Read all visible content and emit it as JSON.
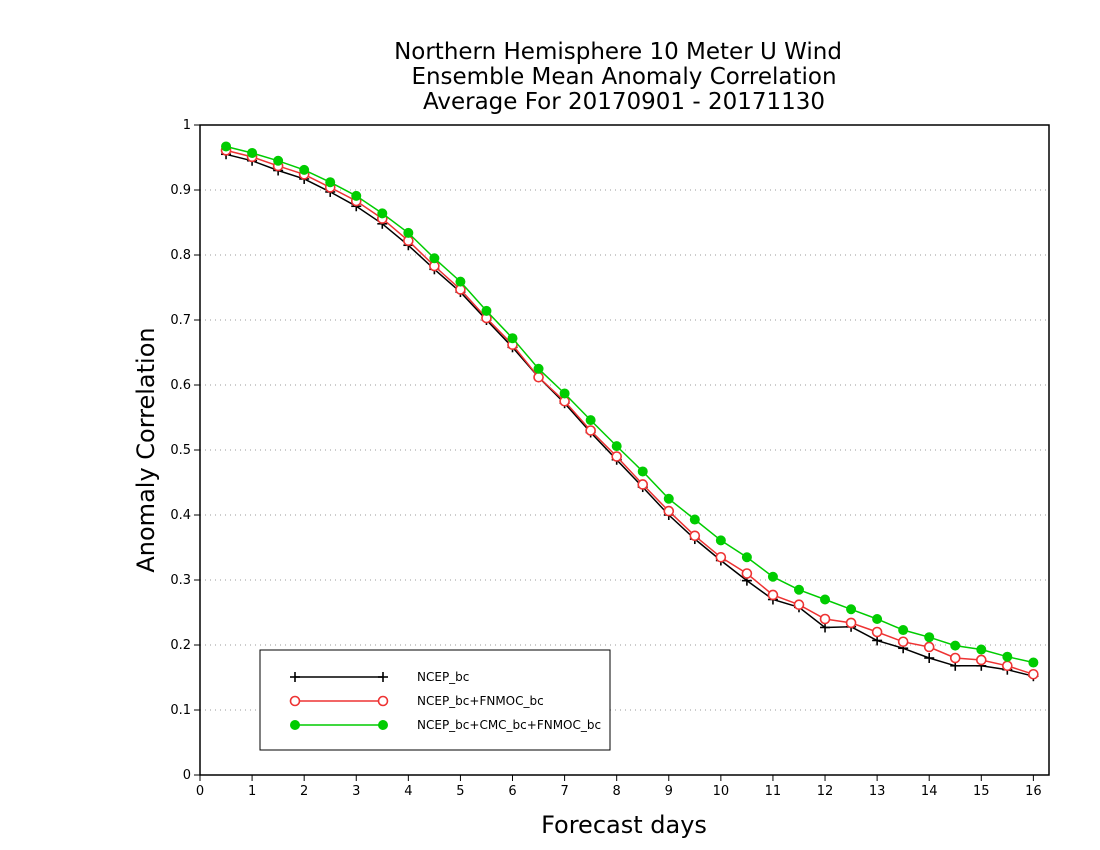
{
  "chart_data": {
    "type": "line",
    "title": [
      "Northern Hemisphere 10 Meter U Wind",
      "Ensemble Mean Anomaly Correlation",
      "Average For 20170901 - 20171130"
    ],
    "xlabel": "Forecast days",
    "ylabel": "Anomaly Correlation",
    "xlim": [
      0,
      16.3
    ],
    "ylim": [
      0,
      1
    ],
    "xticks": [
      "0",
      "1",
      "2",
      "3",
      "4",
      "5",
      "6",
      "7",
      "8",
      "9",
      "10",
      "11",
      "12",
      "13",
      "14",
      "15",
      "16"
    ],
    "yticks": [
      "0",
      "0.1",
      "0.2",
      "0.3",
      "0.4",
      "0.5",
      "0.6",
      "0.7",
      "0.8",
      "0.9",
      "1"
    ],
    "grid": "horizontal dotted",
    "legend_position": "bottom-left",
    "x": [
      0.5,
      1,
      1.5,
      2,
      2.5,
      3,
      3.5,
      4,
      4.5,
      5,
      5.5,
      6,
      6.5,
      7,
      7.5,
      8,
      8.5,
      9,
      9.5,
      10,
      10.5,
      11,
      11.5,
      12,
      12.5,
      13,
      13.5,
      14,
      14.5,
      15,
      15.5,
      16
    ],
    "series": [
      {
        "name": "NCEP_bc",
        "color": "#000000",
        "marker": "plus",
        "values": [
          0.955,
          0.945,
          0.93,
          0.917,
          0.897,
          0.875,
          0.848,
          0.815,
          0.778,
          0.743,
          0.7,
          0.658,
          0.612,
          0.572,
          0.527,
          0.485,
          0.443,
          0.4,
          0.363,
          0.33,
          0.299,
          0.27,
          0.258,
          0.227,
          0.228,
          0.207,
          0.195,
          0.18,
          0.168,
          0.168,
          0.162,
          0.152
        ]
      },
      {
        "name": "NCEP_bc+FNMOC_bc",
        "color": "#ee3333",
        "marker": "open-circle",
        "values": [
          0.961,
          0.951,
          0.937,
          0.924,
          0.904,
          0.883,
          0.856,
          0.822,
          0.783,
          0.747,
          0.703,
          0.662,
          0.612,
          0.575,
          0.53,
          0.49,
          0.447,
          0.406,
          0.368,
          0.335,
          0.31,
          0.277,
          0.262,
          0.24,
          0.234,
          0.22,
          0.205,
          0.197,
          0.18,
          0.177,
          0.168,
          0.155
        ]
      },
      {
        "name": "NCEP_bc+CMC_bc+FNMOC_bc",
        "color": "#00cc00",
        "marker": "filled-circle",
        "values": [
          0.967,
          0.957,
          0.945,
          0.931,
          0.912,
          0.891,
          0.864,
          0.834,
          0.795,
          0.759,
          0.714,
          0.672,
          0.625,
          0.587,
          0.546,
          0.506,
          0.467,
          0.425,
          0.393,
          0.361,
          0.335,
          0.305,
          0.285,
          0.27,
          0.255,
          0.24,
          0.223,
          0.212,
          0.199,
          0.193,
          0.182,
          0.173
        ]
      }
    ]
  }
}
